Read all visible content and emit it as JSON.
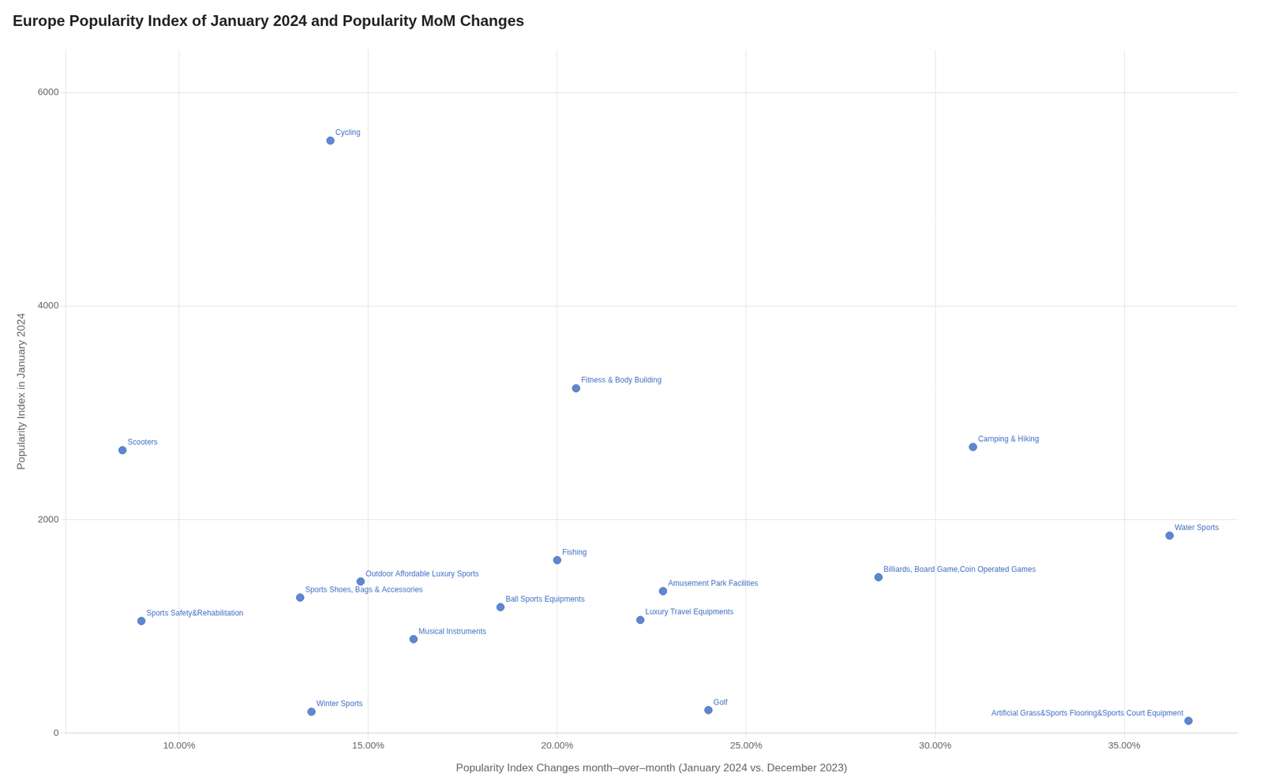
{
  "chart_data": {
    "type": "scatter",
    "title": "Europe Popularity Index of January 2024 and Popularity MoM Changes",
    "xlabel": "Popularity Index Changes month–over–month (January 2024 vs. December 2023)",
    "ylabel": "Popularity Index in January 2024",
    "color": "#4472C4",
    "point_labels": [
      "Cycling",
      "Scooters",
      "Fitness & Body Building",
      "Camping & Hiking",
      "Water Sports",
      "Fishing",
      "Outdoor Affordable Luxury Sports",
      "Sports Shoes, Bags & Accessories",
      "Ball Sports Equipments",
      "Sports Safety&Rehabilitation",
      "Musical Instruments",
      "Winter Sports",
      "Billiards, Board Game,Coin Operated Games",
      "Amusement Park Facilities",
      "Luxury Travel Equipments",
      "Golf",
      "Artificial Grass&Sports Flooring&Sports Court Equipment"
    ],
    "x": [
      0.14,
      0.085,
      0.205,
      0.31,
      0.362,
      0.2,
      0.148,
      0.132,
      0.185,
      0.09,
      0.162,
      0.135,
      0.285,
      0.228,
      0.222,
      0.24,
      0.367
    ],
    "values": [
      5550,
      2650,
      3230,
      2680,
      1850,
      1620,
      1420,
      1270,
      1180,
      1050,
      880,
      200,
      1460,
      1330,
      1060,
      215,
      115
    ],
    "xlim": [
      0.07,
      0.38
    ],
    "ylim": [
      0,
      6400
    ],
    "xticks": [
      {
        "value": 0.1,
        "label": "10.00%"
      },
      {
        "value": 0.15,
        "label": "15.00%"
      },
      {
        "value": 0.2,
        "label": "20.00%"
      },
      {
        "value": 0.25,
        "label": "25.00%"
      },
      {
        "value": 0.3,
        "label": "30.00%"
      },
      {
        "value": 0.35,
        "label": "35.00%"
      }
    ],
    "yticks": [
      0,
      2000,
      4000,
      6000
    ],
    "grid": true
  }
}
